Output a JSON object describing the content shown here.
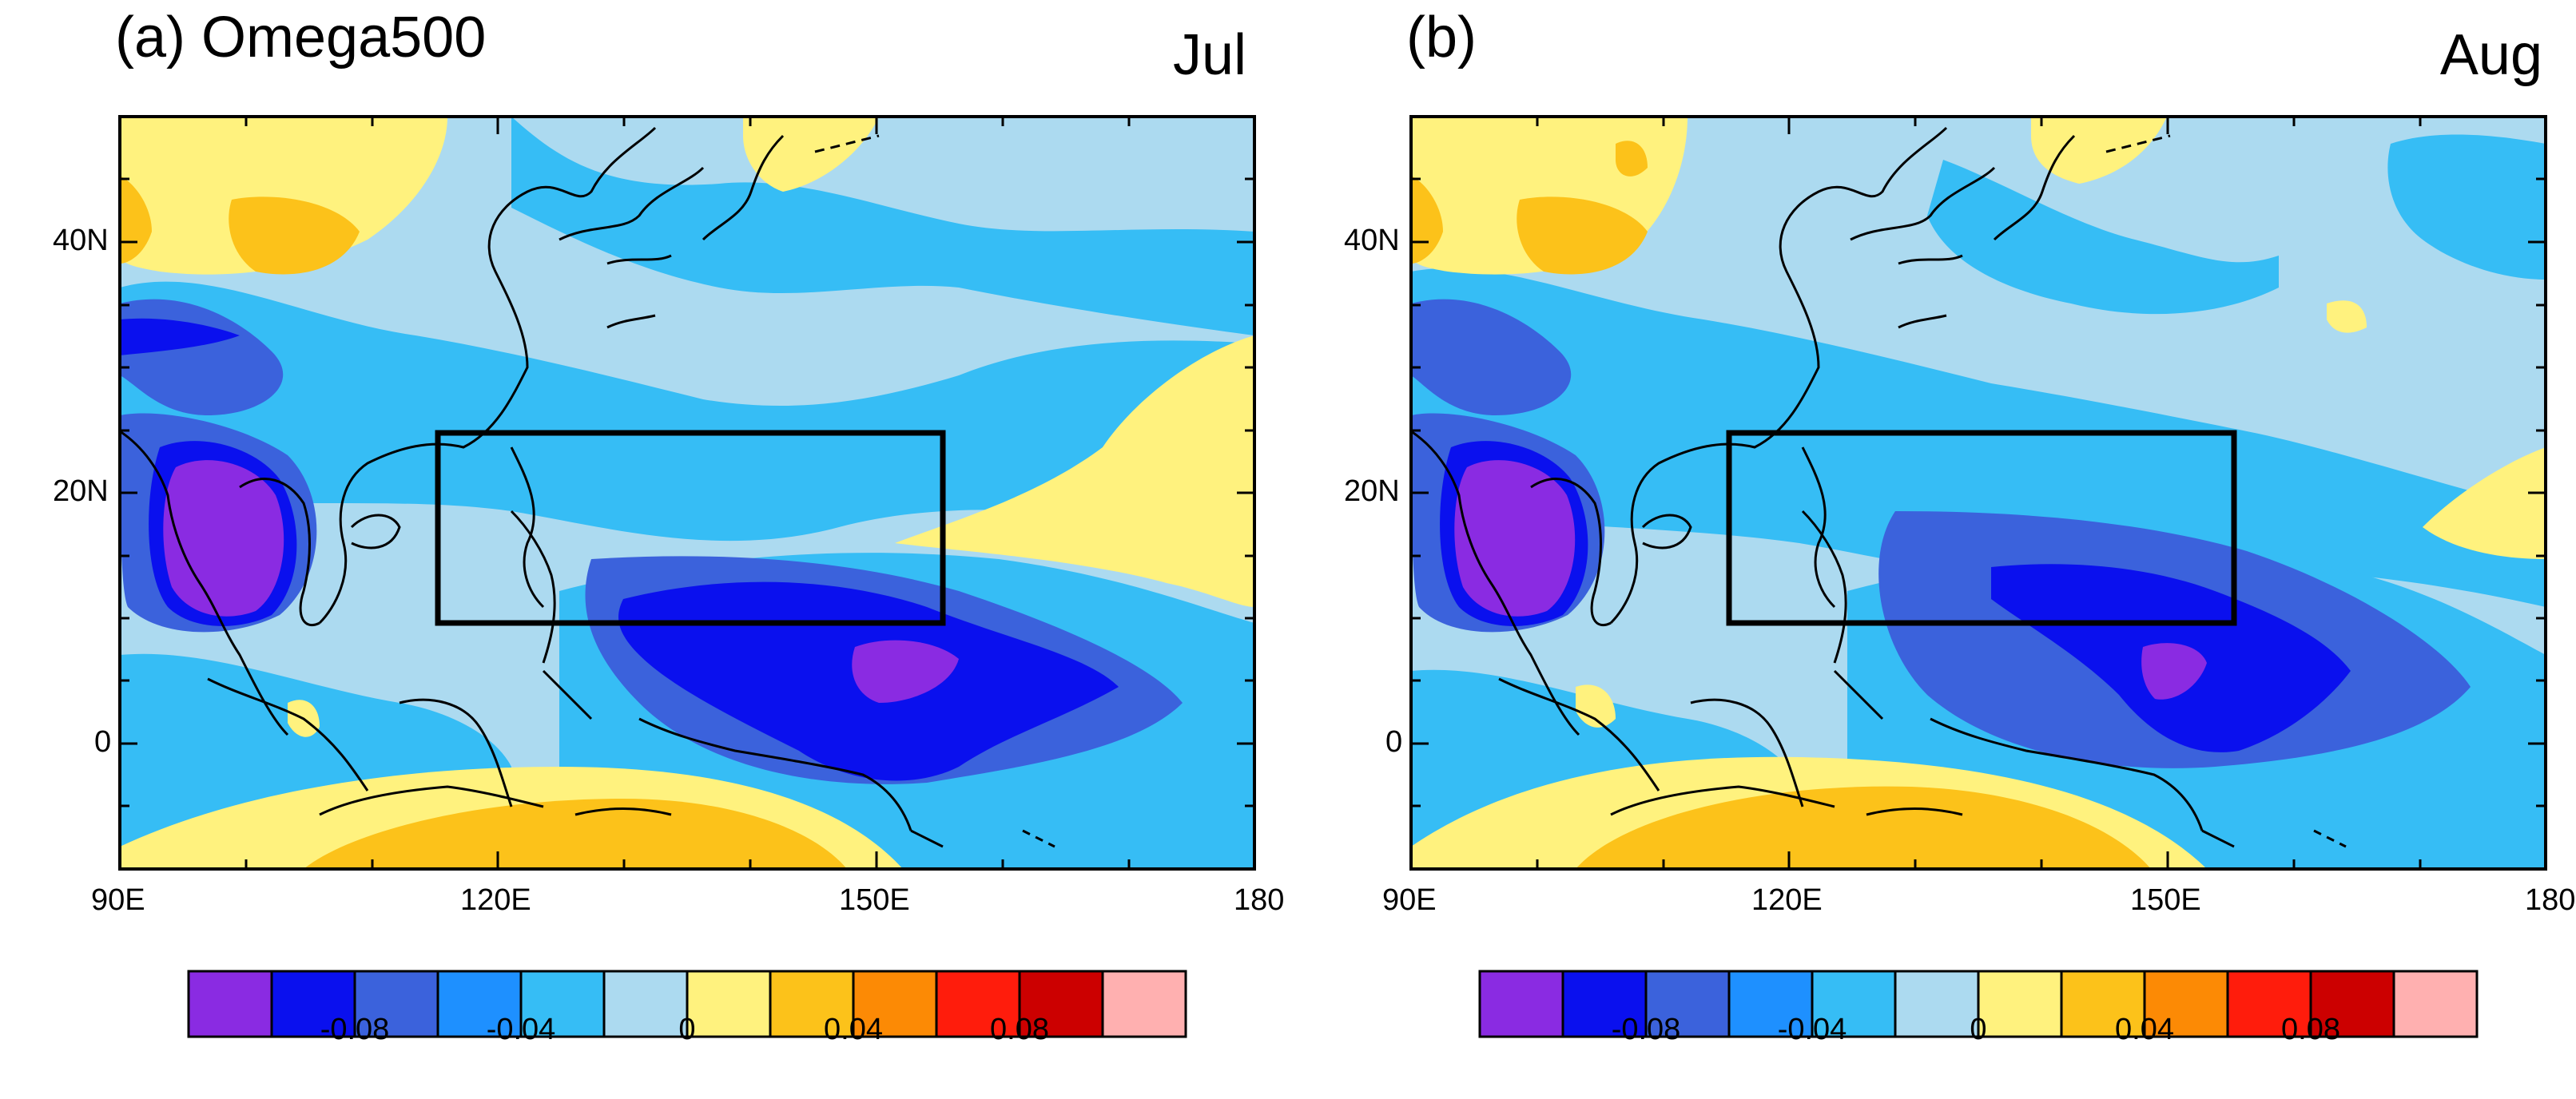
{
  "figure": {
    "variable": "Omega500",
    "panels": [
      {
        "label": "(a) Omega500",
        "month": "Jul"
      },
      {
        "label": "(b)",
        "month": "Aug"
      }
    ],
    "map": {
      "lon_range": [
        90,
        180
      ],
      "lat_range": [
        -10,
        50
      ],
      "x_ticks": [
        "90E",
        "120E",
        "150E",
        "180"
      ],
      "y_ticks": [
        "40N",
        "20N",
        "0"
      ],
      "box_region": {
        "lon": [
          115,
          155
        ],
        "lat": [
          10,
          25
        ]
      }
    },
    "colorbar": {
      "colors": [
        "#8a2be2",
        "#0a10ee",
        "#3b62dc",
        "#1e90ff",
        "#36bdf5",
        "#acdaf0",
        "#fff27e",
        "#fcc21a",
        "#fc8a05",
        "#ff1c0c",
        "#cc0000",
        "#ffb0b0"
      ],
      "labels": [
        "-0.08",
        "-0.04",
        "0",
        "0.04",
        "0.08"
      ]
    }
  }
}
